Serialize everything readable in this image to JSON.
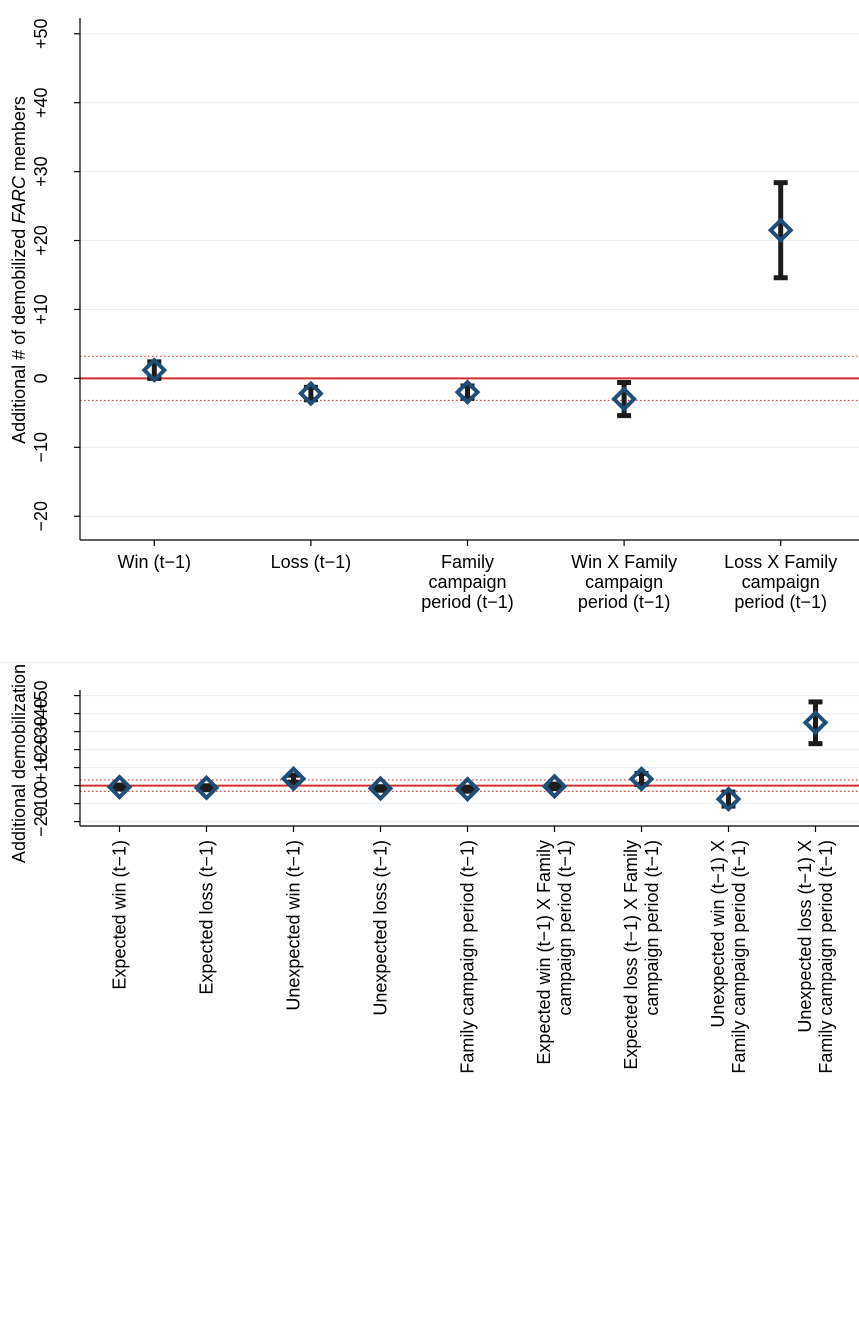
{
  "chart_data": [
    {
      "type": "scatter",
      "ylabel_parts": [
        "Additional # of demobilized ",
        "FARC",
        " members"
      ],
      "ylim": [
        -22,
        52
      ],
      "yticks": [
        -20,
        -10,
        0,
        10,
        20,
        30,
        40,
        50
      ],
      "ytick_labels": [
        "−20",
        "−10",
        "0",
        "+10",
        "+20",
        "+30",
        "+40",
        "+50"
      ],
      "grid": true,
      "reference_line": 0,
      "threshold_lines": [
        3.2,
        -3.2
      ],
      "categories": [
        [
          "Win (t−1)"
        ],
        [
          "Loss (t−1)"
        ],
        [
          "Family",
          "campaign",
          "period (t−1)"
        ],
        [
          "Win X Family",
          "campaign",
          "period (t−1)"
        ],
        [
          "Loss X Family",
          "campaign",
          "period (t−1)"
        ]
      ],
      "points": [
        {
          "estimate": 1.2,
          "low": 0.0,
          "high": 2.4
        },
        {
          "estimate": -2.2,
          "low": -3.1,
          "high": -1.3
        },
        {
          "estimate": -2.0,
          "low": -2.9,
          "high": -1.1
        },
        {
          "estimate": -3.0,
          "low": -5.4,
          "high": -0.6
        },
        {
          "estimate": 21.5,
          "low": 14.6,
          "high": 28.4
        }
      ]
    },
    {
      "type": "scatter",
      "ylabel": "Additional demobilizations",
      "ylim": [
        -23,
        52
      ],
      "yticks": [
        -20,
        -10,
        0,
        10,
        20,
        30,
        40,
        50
      ],
      "ytick_labels": [
        "−20",
        "−10",
        "0",
        "+10",
        "+20",
        "+30",
        "+40",
        "+50"
      ],
      "grid": true,
      "reference_line": 0,
      "threshold_lines": [
        3.2,
        -3.2
      ],
      "categories": [
        [
          "Expected win (t−1)"
        ],
        [
          "Expected loss (t−1)"
        ],
        [
          "Unexpected win (t−1)"
        ],
        [
          "Unexpected loss (t−1)"
        ],
        [
          "Family campaign period (t−1)"
        ],
        [
          "Expected win (t−1) X Family",
          "campaign period (t−1)"
        ],
        [
          "Expected loss (t−1) X Family",
          "campaign period (t−1)"
        ],
        [
          "Unexpected win (t−1) X",
          "Family campaign period (t−1)"
        ],
        [
          "Unexpected loss (t−1) X",
          "Family campaign period (t−1)"
        ]
      ],
      "points": [
        {
          "estimate": -0.8,
          "low": -1.9,
          "high": 0.3
        },
        {
          "estimate": -1.2,
          "low": -2.3,
          "high": -0.1
        },
        {
          "estimate": 3.8,
          "low": 1.8,
          "high": 5.8
        },
        {
          "estimate": -1.6,
          "low": -2.6,
          "high": -0.6
        },
        {
          "estimate": -2.0,
          "low": -3.1,
          "high": -0.9
        },
        {
          "estimate": -0.4,
          "low": -1.6,
          "high": 0.8
        },
        {
          "estimate": 3.7,
          "low": 0.7,
          "high": 6.7
        },
        {
          "estimate": -7.5,
          "low": -11.4,
          "high": -3.6
        },
        {
          "estimate": 35.0,
          "low": 23.3,
          "high": 46.5
        }
      ]
    }
  ],
  "colors": {
    "marker": "#1f4e79",
    "errorbar": "#1c1c1c",
    "zero_line": "#d32f2f",
    "threshold": "#d64a4a",
    "grid": "#e8eef1",
    "axis": "#000000"
  }
}
